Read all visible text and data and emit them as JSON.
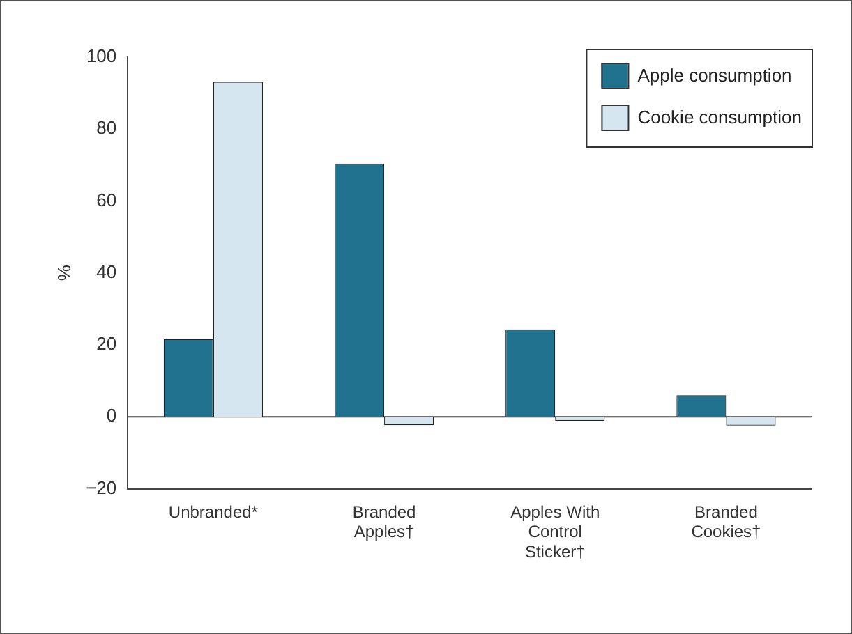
{
  "chart_data": {
    "type": "bar",
    "ylabel": "%",
    "categories": [
      "Unbranded*",
      "Branded Apples†",
      "Apples With Control Sticker†",
      "Branded Cookies†"
    ],
    "series": [
      {
        "name": "Apple consumption",
        "color": "#21728f",
        "values": [
          21.6,
          70.4,
          24.3,
          6.0
        ]
      },
      {
        "name": "Cookie consumption",
        "color": "#d5e6f0",
        "values": [
          93.1,
          -2.3,
          -1.1,
          -2.4
        ]
      }
    ],
    "ylim": [
      -20,
      100
    ],
    "yticks": [
      -20,
      0,
      20,
      40,
      60,
      80,
      100
    ],
    "grid": false,
    "legend": "top right",
    "ref_lines": [
      {
        "axis": "y",
        "value": 0
      }
    ]
  }
}
